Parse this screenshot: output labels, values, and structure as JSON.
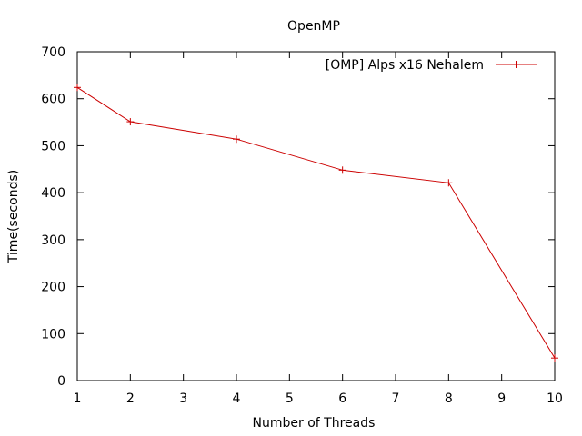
{
  "chart_data": {
    "type": "line",
    "title": "OpenMP",
    "xlabel": "Number of Threads",
    "ylabel": "Time(seconds)",
    "x_ticks": [
      "1",
      "2",
      "3",
      "4",
      "5",
      "6",
      "7",
      "8",
      "9",
      "10"
    ],
    "y_ticks": [
      "0",
      "100",
      "200",
      "300",
      "400",
      "500",
      "600",
      "700"
    ],
    "xlim": [
      1,
      10
    ],
    "ylim": [
      0,
      700
    ],
    "grid": false,
    "legend_position": "top-right",
    "series": [
      {
        "name": "[OMP] Alps x16 Nehalem",
        "color": "#cc0000",
        "marker": "plus",
        "x": [
          1,
          2,
          4,
          6,
          8,
          10
        ],
        "y": [
          624,
          551,
          514,
          448,
          421,
          48
        ]
      }
    ]
  }
}
